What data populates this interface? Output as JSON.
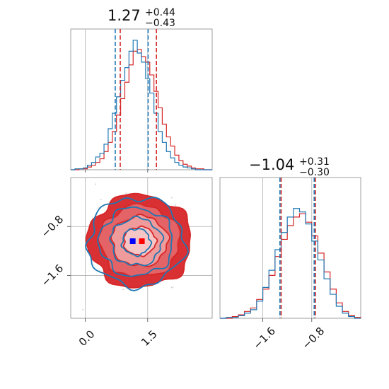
{
  "chart_data": {
    "type": "corner",
    "series": [
      {
        "name": "",
        "color": "#1f77b4"
      },
      {
        "name": "",
        "color": "#d62728"
      }
    ],
    "truth_marker_colors": [
      "#0000ff",
      "#ff0000"
    ],
    "parameters": [
      {
        "title": {
          "median": "1.27",
          "plus": "+0.44",
          "minus": "−0.43"
        },
        "range": [
          -0.35,
          3.05
        ],
        "ticks": [
          0.0,
          1.5
        ],
        "tick_labels": [
          "0.0",
          "1.5"
        ],
        "quantile_lines": {
          "blue": [
            0.72,
            1.51
          ],
          "red": [
            0.84,
            1.71
          ]
        },
        "histogram_bins": [
          -0.35,
          -0.25,
          -0.15,
          -0.05,
          0.05,
          0.15,
          0.25,
          0.35,
          0.45,
          0.55,
          0.65,
          0.75,
          0.85,
          0.95,
          1.05,
          1.15,
          1.25,
          1.35,
          1.45,
          1.55,
          1.65,
          1.75,
          1.85,
          1.95,
          2.05,
          2.15,
          2.25,
          2.35,
          2.45,
          2.55,
          2.65,
          2.75,
          2.85,
          2.95,
          3.05
        ],
        "hist_blue": [
          0,
          1,
          1,
          2,
          5,
          8,
          14,
          18,
          28,
          45,
          62,
          80,
          98,
          112,
          130,
          142,
          128,
          118,
          100,
          84,
          62,
          42,
          30,
          20,
          13,
          8,
          5,
          3,
          2,
          1,
          0,
          0,
          0,
          0
        ],
        "hist_red": [
          0,
          0,
          1,
          1,
          3,
          5,
          8,
          12,
          20,
          30,
          42,
          60,
          78,
          96,
          115,
          130,
          132,
          124,
          118,
          104,
          86,
          68,
          50,
          36,
          26,
          16,
          10,
          6,
          4,
          2,
          1,
          1,
          0,
          0
        ]
      },
      {
        "title": {
          "median": "−1.04",
          "plus": "+0.31",
          "minus": "−0.30"
        },
        "range": [
          -2.3,
          0.0
        ],
        "ticks": [
          -1.6,
          -0.8
        ],
        "tick_labels": [
          "−1.6",
          "−0.8"
        ],
        "quantile_lines": {
          "blue": [
            -1.32,
            -0.76
          ],
          "red": [
            -1.3,
            -0.74
          ]
        },
        "histogram_bins": [
          -2.3,
          -2.2,
          -2.1,
          -2.0,
          -1.9,
          -1.8,
          -1.7,
          -1.6,
          -1.5,
          -1.4,
          -1.3,
          -1.2,
          -1.1,
          -1.0,
          -0.9,
          -0.8,
          -0.7,
          -0.6,
          -0.5,
          -0.4,
          -0.3,
          -0.2,
          -0.1,
          0.0
        ],
        "hist_blue": [
          0,
          1,
          1,
          3,
          6,
          10,
          20,
          36,
          56,
          80,
          100,
          118,
          128,
          124,
          110,
          90,
          68,
          46,
          28,
          14,
          6,
          2,
          0
        ],
        "hist_red": [
          0,
          0,
          2,
          4,
          8,
          12,
          22,
          34,
          50,
          72,
          92,
          108,
          118,
          122,
          112,
          96,
          76,
          54,
          34,
          18,
          8,
          3,
          1
        ]
      }
    ],
    "joint": {
      "x_param": 0,
      "y_param": 1,
      "truth_blue": [
        1.14,
        -1.04
      ],
      "truth_red": [
        1.36,
        -1.04
      ],
      "contour_levels_sigma": [
        0.5,
        1.0,
        1.5,
        2.0
      ]
    }
  }
}
